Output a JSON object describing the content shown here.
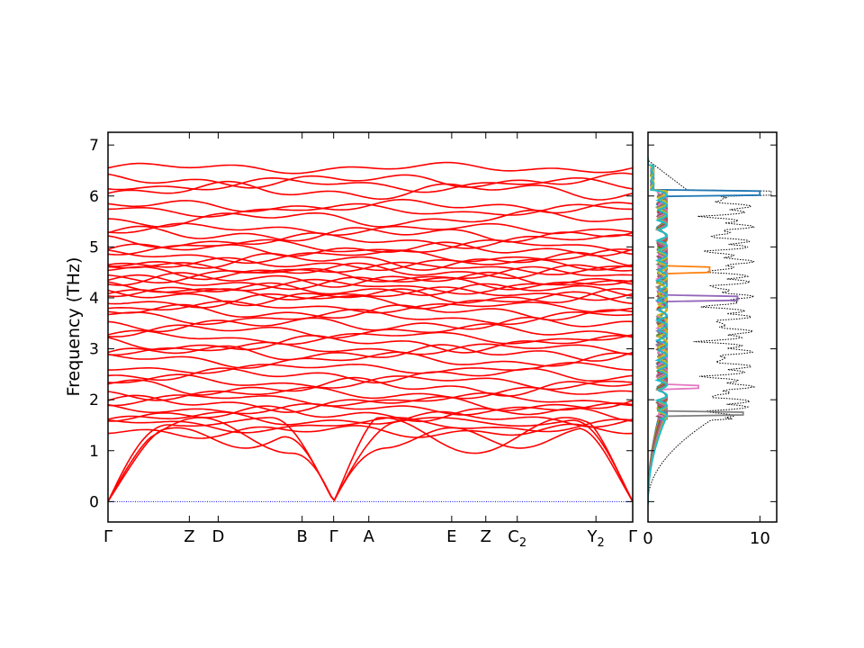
{
  "chart_data": [
    {
      "type": "line",
      "ylabel": "Frequency (THz)",
      "ylim": [
        -0.4,
        7.25
      ],
      "yticks": [
        0,
        1,
        2,
        3,
        4,
        5,
        6,
        7
      ],
      "x_labels": [
        {
          "label": "Γ",
          "x": 0.0,
          "sub": ""
        },
        {
          "label": "Z",
          "x": 0.155,
          "sub": ""
        },
        {
          "label": "D",
          "x": 0.21,
          "sub": ""
        },
        {
          "label": "B",
          "x": 0.37,
          "sub": ""
        },
        {
          "label": "Γ",
          "x": 0.43,
          "sub": ""
        },
        {
          "label": "A",
          "x": 0.497,
          "sub": ""
        },
        {
          "label": "E",
          "x": 0.655,
          "sub": ""
        },
        {
          "label": "Z",
          "x": 0.72,
          "sub": ""
        },
        {
          "label": "C",
          "x": 0.78,
          "sub": "2"
        },
        {
          "label": "Y",
          "x": 0.93,
          "sub": "2"
        },
        {
          "label": "Γ",
          "x": 1.0,
          "sub": ""
        }
      ],
      "line_color": "#ff0000",
      "zero_line_color": "#0000ff",
      "band_levels": [
        6.55,
        6.3,
        6.22,
        6.1,
        5.8,
        5.72,
        5.55,
        5.35,
        5.25,
        5.12,
        5.0,
        4.95,
        4.82,
        4.72,
        4.66,
        4.58,
        4.52,
        4.45,
        4.36,
        4.3,
        4.22,
        4.16,
        4.08,
        4.02,
        3.95,
        3.82,
        3.72,
        3.62,
        3.48,
        3.35,
        3.22,
        3.1,
        3.0,
        2.92,
        2.78,
        2.62,
        2.48,
        2.35,
        2.25,
        2.12,
        2.0,
        1.92,
        1.82,
        1.72,
        1.62,
        1.5,
        1.38
      ]
    },
    {
      "type": "line",
      "xlim": [
        0,
        11.5
      ],
      "xticks": [
        0,
        10
      ],
      "ylim": [
        -0.4,
        7.25
      ],
      "series_colors": [
        "#1f77b4",
        "#ff7f0e",
        "#2ca02c",
        "#d62728",
        "#9467bd",
        "#8c564b",
        "#e377c2",
        "#7f7f7f",
        "#bcbd22",
        "#17becf"
      ],
      "total_line_color": "#000000"
    }
  ]
}
